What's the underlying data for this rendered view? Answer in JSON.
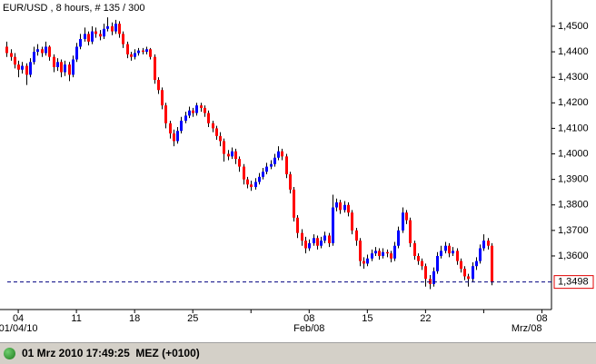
{
  "chart_data": {
    "type": "candlestick",
    "title": "EUR/USD , 8 hours, # 135 / 300",
    "candles": [
      [
        1.442,
        1.444,
        1.438,
        1.4395
      ],
      [
        1.4395,
        1.441,
        1.4365,
        1.438
      ],
      [
        1.438,
        1.4395,
        1.4335,
        1.435
      ],
      [
        1.435,
        1.4365,
        1.43,
        1.433
      ],
      [
        1.433,
        1.436,
        1.4315,
        1.4345
      ],
      [
        1.4345,
        1.4355,
        1.427,
        1.431
      ],
      [
        1.431,
        1.4375,
        1.43,
        1.436
      ],
      [
        1.436,
        1.442,
        1.435,
        1.44
      ],
      [
        1.44,
        1.443,
        1.4385,
        1.441
      ],
      [
        1.441,
        1.442,
        1.438,
        1.4395
      ],
      [
        1.4395,
        1.444,
        1.4385,
        1.442
      ],
      [
        1.442,
        1.4425,
        1.4365,
        1.438
      ],
      [
        1.438,
        1.439,
        1.432,
        1.434
      ],
      [
        1.434,
        1.4375,
        1.4325,
        1.436
      ],
      [
        1.436,
        1.437,
        1.43,
        1.432
      ],
      [
        1.432,
        1.4365,
        1.4305,
        1.435
      ],
      [
        1.435,
        1.436,
        1.4285,
        1.431
      ],
      [
        1.431,
        1.4385,
        1.43,
        1.437
      ],
      [
        1.437,
        1.4435,
        1.436,
        1.442
      ],
      [
        1.442,
        1.447,
        1.441,
        1.445
      ],
      [
        1.445,
        1.4495,
        1.444,
        1.447
      ],
      [
        1.447,
        1.448,
        1.4425,
        1.444
      ],
      [
        1.444,
        1.45,
        1.443,
        1.448
      ],
      [
        1.448,
        1.4495,
        1.4455,
        1.447
      ],
      [
        1.447,
        1.4485,
        1.4445,
        1.446
      ],
      [
        1.446,
        1.451,
        1.445,
        1.449
      ],
      [
        1.449,
        1.4535,
        1.448,
        1.45
      ],
      [
        1.45,
        1.4515,
        1.4465,
        1.448
      ],
      [
        1.448,
        1.4525,
        1.447,
        1.451
      ],
      [
        1.451,
        1.452,
        1.4455,
        1.447
      ],
      [
        1.447,
        1.448,
        1.4415,
        1.443
      ],
      [
        1.443,
        1.444,
        1.4375,
        1.439
      ],
      [
        1.439,
        1.44,
        1.4365,
        1.438
      ],
      [
        1.438,
        1.441,
        1.437,
        1.4395
      ],
      [
        1.4395,
        1.4415,
        1.4385,
        1.4405
      ],
      [
        1.4405,
        1.4415,
        1.439,
        1.44
      ],
      [
        1.44,
        1.442,
        1.439,
        1.441
      ],
      [
        1.441,
        1.4415,
        1.437,
        1.438
      ],
      [
        1.438,
        1.439,
        1.4275,
        1.429
      ],
      [
        1.429,
        1.43,
        1.4235,
        1.425
      ],
      [
        1.425,
        1.426,
        1.4175,
        1.419
      ],
      [
        1.419,
        1.42,
        1.41,
        1.412
      ],
      [
        1.412,
        1.413,
        1.406,
        1.408
      ],
      [
        1.408,
        1.4095,
        1.403,
        1.405
      ],
      [
        1.405,
        1.4105,
        1.404,
        1.409
      ],
      [
        1.409,
        1.4145,
        1.408,
        1.413
      ],
      [
        1.413,
        1.4165,
        1.412,
        1.415
      ],
      [
        1.415,
        1.4185,
        1.414,
        1.417
      ],
      [
        1.417,
        1.418,
        1.4145,
        1.416
      ],
      [
        1.416,
        1.42,
        1.415,
        1.419
      ],
      [
        1.419,
        1.42,
        1.4165,
        1.418
      ],
      [
        1.418,
        1.419,
        1.4145,
        1.416
      ],
      [
        1.416,
        1.417,
        1.4105,
        1.412
      ],
      [
        1.412,
        1.413,
        1.4085,
        1.41
      ],
      [
        1.41,
        1.411,
        1.4055,
        1.407
      ],
      [
        1.407,
        1.4085,
        1.403,
        1.405
      ],
      [
        1.405,
        1.406,
        1.397,
        1.4
      ],
      [
        1.4,
        1.4015,
        1.3975,
        1.399
      ],
      [
        1.399,
        1.4025,
        1.398,
        1.401
      ],
      [
        1.401,
        1.402,
        1.396,
        1.398
      ],
      [
        1.398,
        1.399,
        1.393,
        1.395
      ],
      [
        1.395,
        1.396,
        1.388,
        1.39
      ],
      [
        1.39,
        1.391,
        1.3865,
        1.388
      ],
      [
        1.388,
        1.3895,
        1.3855,
        1.387
      ],
      [
        1.387,
        1.3905,
        1.386,
        1.389
      ],
      [
        1.389,
        1.3925,
        1.388,
        1.391
      ],
      [
        1.391,
        1.3945,
        1.39,
        1.393
      ],
      [
        1.393,
        1.3965,
        1.392,
        1.395
      ],
      [
        1.395,
        1.3975,
        1.394,
        1.396
      ],
      [
        1.396,
        1.4,
        1.395,
        1.3985
      ],
      [
        1.3985,
        1.403,
        1.3975,
        1.401
      ],
      [
        1.401,
        1.402,
        1.3975,
        1.399
      ],
      [
        1.399,
        1.4,
        1.3905,
        1.392
      ],
      [
        1.392,
        1.393,
        1.3845,
        1.386
      ],
      [
        1.386,
        1.387,
        1.3735,
        1.375
      ],
      [
        1.375,
        1.376,
        1.367,
        1.369
      ],
      [
        1.369,
        1.3705,
        1.364,
        1.366
      ],
      [
        1.366,
        1.3675,
        1.361,
        1.363
      ],
      [
        1.363,
        1.3665,
        1.362,
        1.365
      ],
      [
        1.365,
        1.3685,
        1.364,
        1.367
      ],
      [
        1.367,
        1.368,
        1.3625,
        1.364
      ],
      [
        1.364,
        1.3675,
        1.363,
        1.366
      ],
      [
        1.366,
        1.3695,
        1.365,
        1.368
      ],
      [
        1.368,
        1.369,
        1.3635,
        1.365
      ],
      [
        1.365,
        1.384,
        1.364,
        1.379
      ],
      [
        1.379,
        1.3825,
        1.3775,
        1.381
      ],
      [
        1.381,
        1.382,
        1.3765,
        1.378
      ],
      [
        1.378,
        1.3815,
        1.377,
        1.38
      ],
      [
        1.38,
        1.381,
        1.3755,
        1.377
      ],
      [
        1.377,
        1.378,
        1.3685,
        1.37
      ],
      [
        1.37,
        1.371,
        1.364,
        1.366
      ],
      [
        1.366,
        1.367,
        1.356,
        1.358
      ],
      [
        1.358,
        1.3595,
        1.355,
        1.357
      ],
      [
        1.357,
        1.3605,
        1.356,
        1.359
      ],
      [
        1.359,
        1.3625,
        1.358,
        1.361
      ],
      [
        1.361,
        1.3635,
        1.36,
        1.362
      ],
      [
        1.362,
        1.363,
        1.3585,
        1.36
      ],
      [
        1.36,
        1.363,
        1.359,
        1.3615
      ],
      [
        1.3615,
        1.3625,
        1.3595,
        1.361
      ],
      [
        1.361,
        1.362,
        1.3575,
        1.359
      ],
      [
        1.359,
        1.3655,
        1.358,
        1.364
      ],
      [
        1.364,
        1.3715,
        1.363,
        1.37
      ],
      [
        1.37,
        1.379,
        1.369,
        1.377
      ],
      [
        1.377,
        1.378,
        1.3725,
        1.374
      ],
      [
        1.374,
        1.375,
        1.3635,
        1.365
      ],
      [
        1.365,
        1.366,
        1.3585,
        1.36
      ],
      [
        1.36,
        1.361,
        1.3565,
        1.358
      ],
      [
        1.358,
        1.359,
        1.3545,
        1.356
      ],
      [
        1.356,
        1.357,
        1.348,
        1.351
      ],
      [
        1.351,
        1.3525,
        1.347,
        1.349
      ],
      [
        1.349,
        1.3555,
        1.348,
        1.354
      ],
      [
        1.354,
        1.3615,
        1.353,
        1.36
      ],
      [
        1.36,
        1.364,
        1.359,
        1.362
      ],
      [
        1.362,
        1.3655,
        1.361,
        1.364
      ],
      [
        1.364,
        1.365,
        1.3595,
        1.361
      ],
      [
        1.361,
        1.3635,
        1.36,
        1.362
      ],
      [
        1.362,
        1.363,
        1.3565,
        1.358
      ],
      [
        1.358,
        1.359,
        1.3535,
        1.355
      ],
      [
        1.355,
        1.356,
        1.3505,
        1.352
      ],
      [
        1.352,
        1.353,
        1.348,
        1.351
      ],
      [
        1.351,
        1.3575,
        1.35,
        1.356
      ],
      [
        1.356,
        1.3595,
        1.3545,
        1.358
      ],
      [
        1.358,
        1.3645,
        1.357,
        1.363
      ],
      [
        1.363,
        1.3685,
        1.362,
        1.366
      ],
      [
        1.366,
        1.367,
        1.3625,
        1.364
      ],
      [
        1.364,
        1.365,
        1.3485,
        1.3498
      ]
    ],
    "up_color": "#0000ff",
    "down_color": "#ff0000",
    "wick_color": "#000000",
    "xlim": [
      -1,
      140
    ],
    "xticks": [
      {
        "value": 3,
        "label": "04"
      },
      {
        "value": 18,
        "label": "11"
      },
      {
        "value": 33,
        "label": "18"
      },
      {
        "value": 48,
        "label": "25"
      },
      {
        "value": 63,
        "label": null
      },
      {
        "value": 78,
        "label": "08"
      },
      {
        "value": 93,
        "label": "15"
      },
      {
        "value": 108,
        "label": "22"
      },
      {
        "value": 123,
        "label": null
      },
      {
        "value": 138,
        "label": "08"
      }
    ],
    "xsublabels": [
      {
        "value": 3,
        "label": "01/04/10"
      },
      {
        "value": 78,
        "label": "Feb/08"
      },
      {
        "value": 138,
        "label": "Mrz/08"
      }
    ],
    "ylim": [
      1.339,
      1.4603
    ],
    "yticks": [
      {
        "value": 1.36,
        "label": "1,3600"
      },
      {
        "value": 1.37,
        "label": "1,3700"
      },
      {
        "value": 1.38,
        "label": "1,3800"
      },
      {
        "value": 1.39,
        "label": "1,3900"
      },
      {
        "value": 1.4,
        "label": "1,4000"
      },
      {
        "value": 1.41,
        "label": "1,4100"
      },
      {
        "value": 1.42,
        "label": "1,4200"
      },
      {
        "value": 1.43,
        "label": "1,4300"
      },
      {
        "value": 1.44,
        "label": "1,4400"
      },
      {
        "value": 1.45,
        "label": "1,4500"
      }
    ],
    "last_price": {
      "value": 1.3498,
      "label": "1,3498"
    },
    "status": "01 Mrz 2010 17:49:25  MEZ (+0100)"
  }
}
